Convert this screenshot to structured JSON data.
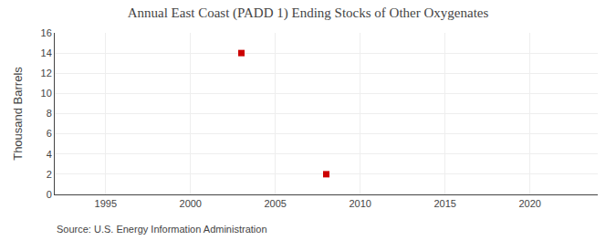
{
  "chart_data": {
    "type": "scatter",
    "title": "Annual East Coast (PADD 1) Ending Stocks of Other Oxygenates",
    "ylabel": "Thousand Barrels",
    "annotations": [
      "Source: U.S. Energy Information Administration"
    ],
    "x": [
      2003,
      2008
    ],
    "values": [
      14,
      2
    ],
    "color": "#CC0000",
    "marker": "square",
    "xlim": [
      1992,
      2024
    ],
    "ylim": [
      0,
      16
    ],
    "xticks": [
      1995,
      2000,
      2005,
      2010,
      2015,
      2020
    ],
    "yticks": [
      0,
      2,
      4,
      6,
      8,
      10,
      12,
      14,
      16
    ],
    "grid": true
  }
}
